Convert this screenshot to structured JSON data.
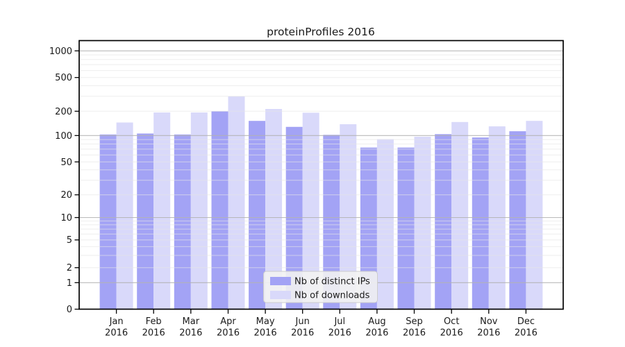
{
  "figure": {
    "background": "#ffffff"
  },
  "chart_data": {
    "type": "bar",
    "title": "proteinProfiles 2016",
    "year_label": "2016",
    "categories": [
      "Jan",
      "Feb",
      "Mar",
      "Apr",
      "May",
      "Jun",
      "Jul",
      "Aug",
      "Sep",
      "Oct",
      "Nov",
      "Dec"
    ],
    "series": [
      {
        "name": "Nb of distinct IPs",
        "color": "#a3a3f5",
        "values": [
          103,
          106,
          103,
          200,
          152,
          128,
          102,
          73,
          73,
          104,
          95,
          113
        ]
      },
      {
        "name": "Nb of downloads",
        "color": "#d9d9fa",
        "values": [
          145,
          193,
          193,
          300,
          213,
          192,
          138,
          91,
          97,
          147,
          130,
          152
        ]
      }
    ],
    "xlabel": "",
    "ylabel": "",
    "yscale": "log-like with 0 baseline",
    "ytick_labels": [
      0,
      1,
      2,
      5,
      10,
      20,
      50,
      100,
      200,
      500,
      1000
    ],
    "ytick_major_grid": [
      1,
      10,
      100,
      1000
    ],
    "ylim": [
      0,
      1000
    ],
    "grid": "on, drawn above bars (major decades darker, minors light)",
    "legend_position": "lower center"
  },
  "colors": {
    "major_grid": "#b3b3b3",
    "minor_grid": "#e6e6e6",
    "axis": "#000000",
    "text": "#1a1a1a",
    "legend_bg": "#f2f2f2",
    "legend_border": "#cccccc"
  }
}
